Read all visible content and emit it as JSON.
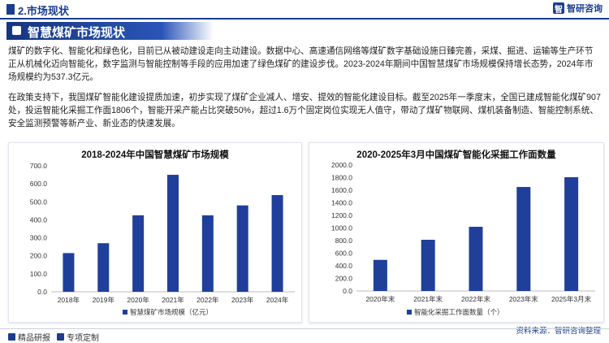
{
  "header": {
    "section_title": "2.市场现状",
    "brand": "智研咨询"
  },
  "banner": {
    "title": "智慧煤矿市场现状"
  },
  "paragraphs": [
    "煤矿的数字化、智能化和绿色化，目前已从被动建设走向主动建设。数据中心、高速通信网络等煤矿数字基础设施日臻完善，采煤、掘进、运输等生产环节正从机械化迈向智能化，数字监测与智能控制等手段的应用加速了绿色煤矿的建设步伐。2023-2024年期间中国智慧煤矿市场规模保持增长态势，2024年市场规模约为537.3亿元。",
    "在政策支持下，我国煤矿智能化建设提质加速，初步实现了煤矿企业减人、增安、提效的智能化建设目标。截至2025年一季度末，全国已建成智能化煤矿907处，投运智能化采掘工作面1806个，智能开采产能占比突破50%，超过1.6万个固定岗位实现无人值守，带动了煤矿物联网、煤机装备制造、智能控制系统、安全监测预警等新产业、新业态的快速发展。"
  ],
  "source": "资料来源：智研咨询整理",
  "footer": {
    "left": "精品研报",
    "middle": "专项定制"
  },
  "colors": {
    "accent": "#1a3d8f",
    "bar": "#1f3f9a"
  },
  "chart_data": [
    {
      "type": "bar",
      "title": "2018-2024年中国智慧煤矿市场规模",
      "categories": [
        "2018年",
        "2019年",
        "2020年",
        "2021年",
        "2022年",
        "2023年",
        "2024年"
      ],
      "series": [
        {
          "name": "智慧煤矿市场规模（亿元）",
          "values": [
            215,
            270,
            425,
            650,
            425,
            480,
            537.3
          ]
        }
      ],
      "ylim": [
        0,
        700
      ],
      "yticks": [
        "0.0",
        "100.0",
        "200.0",
        "300.0",
        "400.0",
        "500.0",
        "600.0",
        "700.0"
      ],
      "grid": false,
      "legend": "bottom"
    },
    {
      "type": "bar",
      "title": "2020-2025年3月中国煤矿智能化采掘工作面数量",
      "categories": [
        "2020年末",
        "2021年末",
        "2022年末",
        "2023年末",
        "2025年3月末"
      ],
      "series": [
        {
          "name": "智能化采掘工作面数量（个）",
          "values": [
            494,
            813,
            1019,
            1651,
            1806
          ]
        }
      ],
      "ylim": [
        0,
        2000
      ],
      "yticks": [
        "0.0",
        "200.0",
        "400.0",
        "600.0",
        "800.0",
        "1000.0",
        "1200.0",
        "1400.0",
        "1600.0",
        "1800.0",
        "2000.0"
      ],
      "grid": false,
      "legend": "bottom"
    }
  ]
}
